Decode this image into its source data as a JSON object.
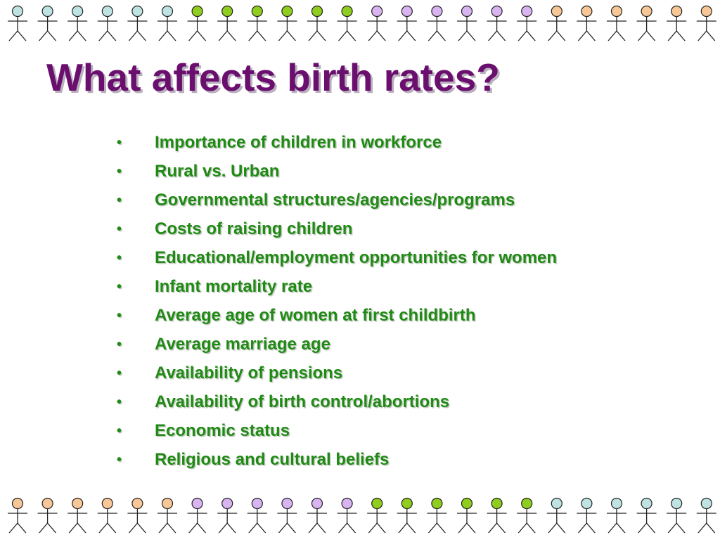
{
  "title": "What affects birth rates?",
  "bullets": [
    "Importance of children in workforce",
    "Rural vs. Urban",
    "Governmental structures/agencies/programs",
    "Costs of raising children",
    "Educational/employment opportunities for women",
    "Infant mortality rate",
    "Average age of women at first childbirth",
    "Average marriage age",
    "Availability of pensions",
    "Availability of birth control/abortions",
    "Economic status",
    "Religious and cultural beliefs"
  ],
  "bullet_symbol": "•",
  "colors": {
    "title": "#6b0f6f",
    "bullet_text": "#1f8a14",
    "figure_heads": {
      "light_blue": "#bfe3e3",
      "green": "#8fcd1e",
      "lavender": "#d8b4f0",
      "peach": "#f8c797"
    }
  },
  "decorations": {
    "top_row_head_colors": [
      "light_blue",
      "light_blue",
      "light_blue",
      "light_blue",
      "light_blue",
      "light_blue",
      "green",
      "green",
      "green",
      "green",
      "green",
      "green",
      "lavender",
      "lavender",
      "lavender",
      "lavender",
      "lavender",
      "lavender",
      "peach",
      "peach",
      "peach",
      "peach",
      "peach",
      "peach"
    ],
    "bottom_row_head_colors": [
      "peach",
      "peach",
      "peach",
      "peach",
      "peach",
      "peach",
      "lavender",
      "lavender",
      "lavender",
      "lavender",
      "lavender",
      "lavender",
      "green",
      "green",
      "green",
      "green",
      "green",
      "green",
      "light_blue",
      "light_blue",
      "light_blue",
      "light_blue",
      "light_blue",
      "light_blue"
    ]
  }
}
